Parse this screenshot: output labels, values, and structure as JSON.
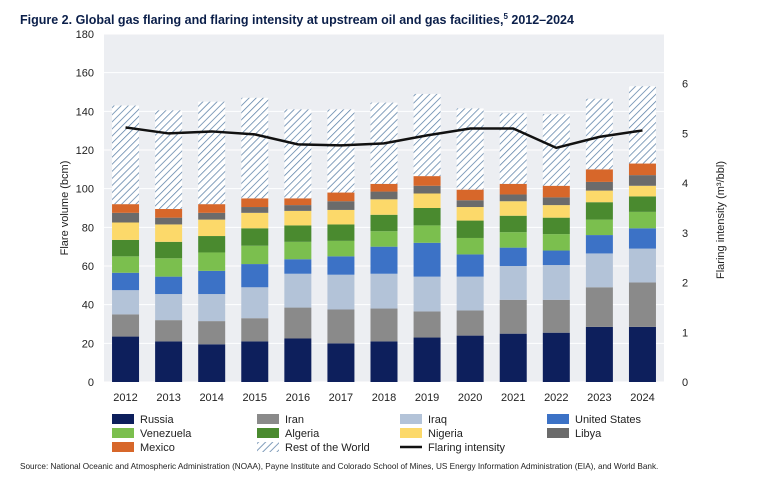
{
  "figure": {
    "title_main": "Figure 2. Global gas flaring and flaring intensity at upstream oil and gas facilities,",
    "title_sup": "5",
    "title_years": " 2012–2024",
    "source": "Source: National Oceanic and Atmospheric Administration (NOAA), Payne Institute and Colorado School of Mines, US Energy Information Administration (EIA), and World Bank."
  },
  "colors": {
    "plot_background": "#eceef2",
    "Russia": "#0d1f5c",
    "Iran": "#8a8a8a",
    "Iraq": "#b3c3d8",
    "United States": "#3c72c6",
    "Venezuela": "#7bbf4e",
    "Algeria": "#4a8a2f",
    "Nigeria": "#fcd96a",
    "Libya": "#6b6b6b",
    "Mexico": "#d7672a",
    "Rest of the World": "#5a7fa6",
    "Flaring intensity": "#111111"
  },
  "chart_data": {
    "type": "bar",
    "stacked": true,
    "categories": [
      "2012",
      "2013",
      "2014",
      "2015",
      "2016",
      "2017",
      "2018",
      "2019",
      "2020",
      "2021",
      "2022",
      "2023",
      "2024"
    ],
    "ylabel": "Flare volume (bcm)",
    "ylim": [
      0,
      180
    ],
    "yticks": [
      "0",
      "20",
      "40",
      "60",
      "80",
      "100",
      "120",
      "140",
      "160",
      "180"
    ],
    "y2label": "Flaring intensity (m³/bbl)",
    "y2lim": [
      0,
      7
    ],
    "y2ticks": [
      "0",
      "1",
      "2",
      "3",
      "4",
      "5",
      "6"
    ],
    "grid": true,
    "legend_position": "bottom",
    "series": [
      {
        "name": "Russia",
        "values": [
          23.5,
          21.0,
          19.5,
          21.0,
          22.5,
          20.0,
          21.0,
          23.0,
          24.0,
          25.0,
          25.5,
          28.5,
          28.5
        ]
      },
      {
        "name": "Iran",
        "values": [
          11.5,
          11.0,
          12.0,
          12.0,
          16.0,
          17.5,
          17.0,
          13.5,
          13.0,
          17.5,
          17.0,
          20.5,
          23.0
        ]
      },
      {
        "name": "Iraq",
        "values": [
          12.5,
          13.5,
          14.0,
          16.0,
          17.5,
          18.0,
          18.0,
          18.0,
          17.5,
          17.5,
          18.0,
          17.5,
          17.5
        ]
      },
      {
        "name": "United States",
        "values": [
          9.0,
          9.0,
          12.0,
          12.0,
          7.5,
          9.5,
          14.0,
          17.5,
          11.5,
          9.5,
          7.5,
          9.5,
          10.5
        ]
      },
      {
        "name": "Venezuela",
        "values": [
          8.5,
          9.5,
          9.5,
          9.5,
          9.0,
          8.0,
          8.0,
          9.0,
          8.5,
          8.0,
          8.5,
          8.0,
          8.5
        ]
      },
      {
        "name": "Algeria",
        "values": [
          8.5,
          8.5,
          8.5,
          9.0,
          8.5,
          8.5,
          8.5,
          9.0,
          9.0,
          8.5,
          8.5,
          9.0,
          8.0
        ]
      },
      {
        "name": "Nigeria",
        "values": [
          9.0,
          9.0,
          8.5,
          8.0,
          7.5,
          7.5,
          8.0,
          7.5,
          7.0,
          7.5,
          6.5,
          6.0,
          5.5
        ]
      },
      {
        "name": "Libya",
        "values": [
          5.0,
          3.5,
          3.5,
          3.0,
          3.0,
          4.5,
          4.0,
          4.0,
          3.5,
          3.5,
          4.0,
          4.5,
          5.5
        ]
      },
      {
        "name": "Mexico",
        "values": [
          4.5,
          4.5,
          4.5,
          4.5,
          3.5,
          4.5,
          4.0,
          5.0,
          5.5,
          5.5,
          6.0,
          6.5,
          6.0
        ]
      },
      {
        "name": "Rest of the World",
        "values": [
          51.0,
          51.0,
          53.0,
          52.0,
          46.0,
          43.0,
          42.0,
          42.5,
          42.0,
          36.5,
          37.0,
          36.5,
          40.0
        ]
      }
    ],
    "line_series": {
      "name": "Flaring intensity",
      "axis": "secondary",
      "values": [
        5.12,
        5.0,
        5.04,
        4.98,
        4.78,
        4.76,
        4.8,
        4.96,
        5.1,
        5.1,
        4.71,
        4.93,
        5.06
      ]
    },
    "legend": [
      "Russia",
      "Iran",
      "Iraq",
      "United States",
      "Venezuela",
      "Algeria",
      "Nigeria",
      "Libya",
      "Mexico",
      "Rest of the World",
      "Flaring intensity"
    ]
  }
}
